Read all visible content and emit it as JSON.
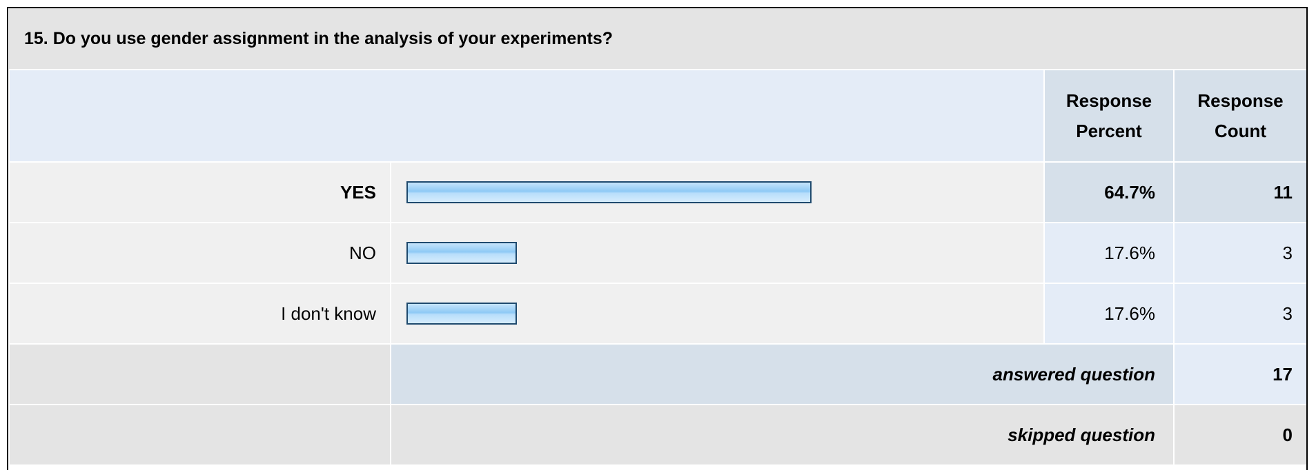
{
  "question": {
    "title": "15. Do you use gender assignment in the analysis of your experiments?",
    "headers": {
      "percent": "Response Percent",
      "count": "Response Count"
    },
    "rows": [
      {
        "label": "YES",
        "percent": 64.7,
        "percent_label": "64.7%",
        "count": "11"
      },
      {
        "label": "NO",
        "percent": 17.6,
        "percent_label": "17.6%",
        "count": "3"
      },
      {
        "label": "I don't know",
        "percent": 17.6,
        "percent_label": "17.6%",
        "count": "3"
      }
    ],
    "answered": {
      "label": "answered question",
      "count": "17"
    },
    "skipped": {
      "label": "skipped question",
      "count": "0"
    }
  }
}
